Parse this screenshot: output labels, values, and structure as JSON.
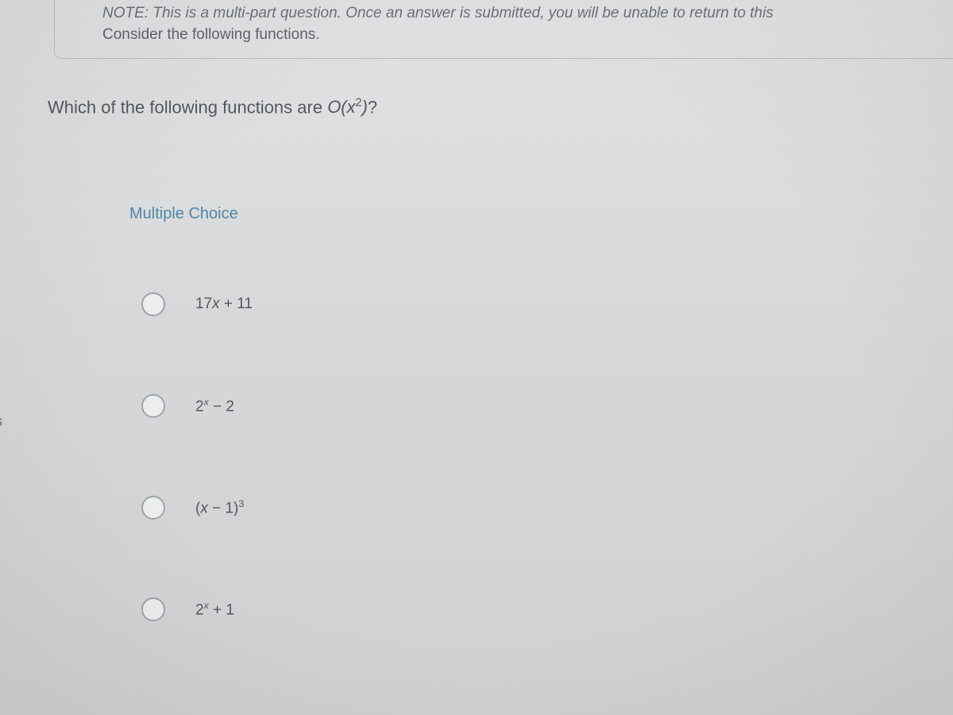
{
  "colors": {
    "page_bg_top": "#e1e2e3",
    "page_bg_bottom": "#d0d1d2",
    "text_primary": "#5a5f66",
    "text_question": "#54595f",
    "accent_blue": "#4f87a8",
    "border": "#b9bcbf",
    "radio_border": "#9fa4a9",
    "radio_fill": "#eceded"
  },
  "side_letter": "s",
  "note": {
    "label": "NOTE:",
    "text": "This is a multi-part question. Once an answer is submitted, you will be unable to return to this",
    "subtext": "Consider the following functions."
  },
  "question": {
    "prefix": "Which of the following functions are ",
    "math_html": "O(x<sup>2</sup>)",
    "suffix": "?"
  },
  "mc_header": "Multiple Choice",
  "options": [
    {
      "html": "17<span class='mi'>x</span> + 11"
    },
    {
      "html": "2<sup class='mi'>x</sup> &minus; 2"
    },
    {
      "html": "(<span class='mi'>x</span> &minus; 1)<sup class='n'>3</sup>"
    },
    {
      "html": "2<sup class='mi'>x</sup> + 1"
    }
  ]
}
